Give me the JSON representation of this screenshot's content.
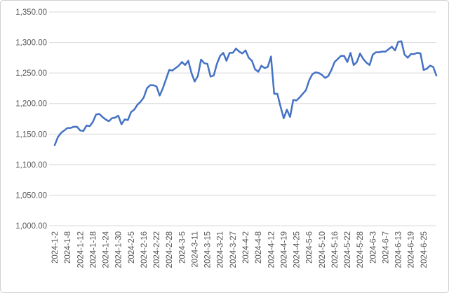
{
  "chart_data": {
    "type": "line",
    "color": "#4472c4",
    "grid": true,
    "ylim": [
      1000,
      1350
    ],
    "yticks": [
      {
        "value": 1000,
        "label": "1,000.00"
      },
      {
        "value": 1050,
        "label": "1,050.00"
      },
      {
        "value": 1100,
        "label": "1,100.00"
      },
      {
        "value": 1150,
        "label": "1,150.00"
      },
      {
        "value": 1200,
        "label": "1,200.00"
      },
      {
        "value": 1250,
        "label": "1,250.00"
      },
      {
        "value": 1300,
        "label": "1,300.00"
      },
      {
        "value": 1350,
        "label": "1,350.00"
      }
    ],
    "categories": [
      "2024-1-2",
      null,
      null,
      null,
      "2024-1-8",
      null,
      null,
      null,
      "2024-1-12",
      null,
      null,
      null,
      "2024-1-18",
      null,
      null,
      null,
      "2024-1-24",
      null,
      null,
      null,
      "2024-1-30",
      null,
      null,
      null,
      "2024-2-5",
      null,
      null,
      null,
      "2024-2-16",
      null,
      null,
      null,
      "2024-2-22",
      null,
      null,
      null,
      "2024-2-28",
      null,
      null,
      null,
      "2024-3-5",
      null,
      null,
      null,
      "2024-3-11",
      null,
      null,
      null,
      "2024-3-15",
      null,
      null,
      null,
      "2024-3-21",
      null,
      null,
      null,
      "2024-3-27",
      null,
      null,
      null,
      "2024-4-2",
      null,
      null,
      null,
      "2024-4-8",
      null,
      null,
      null,
      "2024-4-12",
      null,
      null,
      null,
      "2024-4-19",
      null,
      null,
      null,
      "2024-4-25",
      null,
      null,
      null,
      "2024-5-6",
      null,
      null,
      null,
      "2024-5-10",
      null,
      null,
      null,
      "2024-5-16",
      null,
      null,
      null,
      "2024-5-22",
      null,
      null,
      null,
      "2024-5-28",
      null,
      null,
      null,
      "2024-6-3",
      null,
      null,
      null,
      "2024-6-7",
      null,
      null,
      null,
      "2024-6-13",
      null,
      null,
      null,
      "2024-6-19",
      null,
      null,
      null,
      "2024-6-25",
      null,
      null,
      null,
      null
    ],
    "values": [
      1132,
      1145,
      1152,
      1156,
      1160,
      1160,
      1162,
      1162,
      1156,
      1155,
      1164,
      1163,
      1170,
      1182,
      1183,
      1178,
      1174,
      1171,
      1176,
      1177,
      1180,
      1166,
      1174,
      1173,
      1186,
      1190,
      1198,
      1203,
      1210,
      1225,
      1230,
      1230,
      1228,
      1213,
      1225,
      1240,
      1255,
      1254,
      1258,
      1262,
      1268,
      1263,
      1270,
      1250,
      1236,
      1245,
      1272,
      1266,
      1265,
      1244,
      1246,
      1265,
      1278,
      1283,
      1270,
      1283,
      1283,
      1290,
      1285,
      1282,
      1287,
      1275,
      1270,
      1256,
      1252,
      1262,
      1258,
      1260,
      1277,
      1216,
      1216,
      1195,
      1176,
      1190,
      1178,
      1206,
      1205,
      1210,
      1216,
      1222,
      1238,
      1248,
      1251,
      1250,
      1247,
      1242,
      1245,
      1255,
      1268,
      1273,
      1278,
      1278,
      1268,
      1283,
      1263,
      1268,
      1282,
      1273,
      1267,
      1263,
      1280,
      1284,
      1284,
      1285,
      1285,
      1289,
      1293,
      1287,
      1301,
      1302,
      1280,
      1275,
      1281,
      1281,
      1283,
      1282,
      1255,
      1257,
      1262,
      1260,
      1246
    ]
  }
}
